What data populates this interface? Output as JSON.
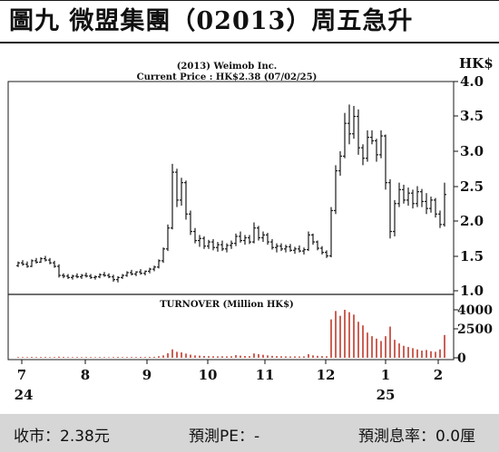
{
  "figure_title": "圖九 微盟集團（02013）周五急升",
  "chart_data": {
    "type": "candlestick",
    "company": "(2013) Weimob Inc.",
    "current_price_label": "Current Price : HK$2.38 (07/02/25)",
    "price_unit": "HK$",
    "ylim": [
      1.0,
      4.0
    ],
    "yticks": [
      "1.0",
      "1.5",
      "2.0",
      "2.5",
      "3.0",
      "3.5",
      "4.0"
    ],
    "xticks": [
      {
        "month": "7",
        "year": "24"
      },
      {
        "month": "8",
        "year": ""
      },
      {
        "month": "9",
        "year": ""
      },
      {
        "month": "10",
        "year": ""
      },
      {
        "month": "11",
        "year": ""
      },
      {
        "month": "12",
        "year": ""
      },
      {
        "month": "1",
        "year": "25"
      },
      {
        "month": "2",
        "year": ""
      }
    ],
    "price_series": [
      [
        1.36,
        1.42,
        1.34,
        1.4
      ],
      [
        1.4,
        1.44,
        1.36,
        1.38
      ],
      [
        1.38,
        1.42,
        1.33,
        1.35
      ],
      [
        1.35,
        1.45,
        1.34,
        1.43
      ],
      [
        1.43,
        1.47,
        1.39,
        1.41
      ],
      [
        1.41,
        1.48,
        1.4,
        1.46
      ],
      [
        1.46,
        1.5,
        1.42,
        1.44
      ],
      [
        1.44,
        1.47,
        1.38,
        1.4
      ],
      [
        1.4,
        1.43,
        1.33,
        1.35
      ],
      [
        1.35,
        1.38,
        1.19,
        1.22
      ],
      [
        1.22,
        1.25,
        1.18,
        1.21
      ],
      [
        1.21,
        1.24,
        1.17,
        1.19
      ],
      [
        1.19,
        1.23,
        1.16,
        1.21
      ],
      [
        1.21,
        1.25,
        1.18,
        1.2
      ],
      [
        1.2,
        1.24,
        1.17,
        1.22
      ],
      [
        1.22,
        1.26,
        1.19,
        1.21
      ],
      [
        1.21,
        1.24,
        1.17,
        1.19
      ],
      [
        1.19,
        1.22,
        1.16,
        1.2
      ],
      [
        1.2,
        1.25,
        1.18,
        1.23
      ],
      [
        1.23,
        1.27,
        1.2,
        1.22
      ],
      [
        1.22,
        1.25,
        1.18,
        1.2
      ],
      [
        1.2,
        1.23,
        1.13,
        1.16
      ],
      [
        1.16,
        1.21,
        1.12,
        1.19
      ],
      [
        1.19,
        1.24,
        1.17,
        1.22
      ],
      [
        1.22,
        1.28,
        1.2,
        1.26
      ],
      [
        1.26,
        1.3,
        1.22,
        1.24
      ],
      [
        1.24,
        1.28,
        1.21,
        1.27
      ],
      [
        1.27,
        1.31,
        1.23,
        1.25
      ],
      [
        1.25,
        1.29,
        1.22,
        1.28
      ],
      [
        1.28,
        1.33,
        1.25,
        1.31
      ],
      [
        1.31,
        1.36,
        1.28,
        1.34
      ],
      [
        1.34,
        1.45,
        1.32,
        1.43
      ],
      [
        1.43,
        1.62,
        1.4,
        1.6
      ],
      [
        1.6,
        1.95,
        1.57,
        1.9
      ],
      [
        1.9,
        2.82,
        1.88,
        2.7
      ],
      [
        2.7,
        2.75,
        2.2,
        2.3
      ],
      [
        2.3,
        2.62,
        2.22,
        2.55
      ],
      [
        2.55,
        2.58,
        2.02,
        2.1
      ],
      [
        2.1,
        2.15,
        1.8,
        1.85
      ],
      [
        1.85,
        1.9,
        1.68,
        1.72
      ],
      [
        1.72,
        1.8,
        1.63,
        1.75
      ],
      [
        1.75,
        1.78,
        1.6,
        1.64
      ],
      [
        1.64,
        1.73,
        1.6,
        1.7
      ],
      [
        1.7,
        1.74,
        1.58,
        1.62
      ],
      [
        1.62,
        1.7,
        1.56,
        1.66
      ],
      [
        1.66,
        1.72,
        1.57,
        1.6
      ],
      [
        1.6,
        1.68,
        1.55,
        1.65
      ],
      [
        1.65,
        1.72,
        1.6,
        1.68
      ],
      [
        1.68,
        1.82,
        1.64,
        1.78
      ],
      [
        1.78,
        1.85,
        1.69,
        1.72
      ],
      [
        1.72,
        1.8,
        1.66,
        1.76
      ],
      [
        1.76,
        1.8,
        1.67,
        1.7
      ],
      [
        1.7,
        1.98,
        1.68,
        1.9
      ],
      [
        1.9,
        1.93,
        1.72,
        1.76
      ],
      [
        1.76,
        1.85,
        1.7,
        1.8
      ],
      [
        1.8,
        1.83,
        1.66,
        1.7
      ],
      [
        1.7,
        1.74,
        1.59,
        1.62
      ],
      [
        1.62,
        1.68,
        1.55,
        1.64
      ],
      [
        1.64,
        1.68,
        1.57,
        1.6
      ],
      [
        1.6,
        1.66,
        1.55,
        1.63
      ],
      [
        1.63,
        1.67,
        1.56,
        1.58
      ],
      [
        1.58,
        1.63,
        1.53,
        1.6
      ],
      [
        1.6,
        1.65,
        1.55,
        1.57
      ],
      [
        1.57,
        1.62,
        1.52,
        1.59
      ],
      [
        1.59,
        1.85,
        1.57,
        1.8
      ],
      [
        1.8,
        1.82,
        1.66,
        1.7
      ],
      [
        1.7,
        1.72,
        1.58,
        1.61
      ],
      [
        1.61,
        1.64,
        1.52,
        1.55
      ],
      [
        1.55,
        1.58,
        1.47,
        1.5
      ],
      [
        1.5,
        2.2,
        1.48,
        2.15
      ],
      [
        2.15,
        2.8,
        2.1,
        2.72
      ],
      [
        2.72,
        3.0,
        2.65,
        2.93
      ],
      [
        2.93,
        3.55,
        2.9,
        3.4
      ],
      [
        3.4,
        3.67,
        3.1,
        3.25
      ],
      [
        3.25,
        3.65,
        3.18,
        3.5
      ],
      [
        3.5,
        3.6,
        2.95,
        3.05
      ],
      [
        3.05,
        3.1,
        2.8,
        2.9
      ],
      [
        2.9,
        3.3,
        2.85,
        3.2
      ],
      [
        3.2,
        3.3,
        3.1,
        3.15
      ],
      [
        3.15,
        3.18,
        2.85,
        2.95
      ],
      [
        2.95,
        3.3,
        2.9,
        3.22
      ],
      [
        3.22,
        3.24,
        2.45,
        2.55
      ],
      [
        2.55,
        2.6,
        1.75,
        1.85
      ],
      [
        1.85,
        2.3,
        1.78,
        2.25
      ],
      [
        2.25,
        2.55,
        2.2,
        2.45
      ],
      [
        2.45,
        2.52,
        2.25,
        2.3
      ],
      [
        2.3,
        2.48,
        2.22,
        2.4
      ],
      [
        2.4,
        2.45,
        2.18,
        2.25
      ],
      [
        2.25,
        2.5,
        2.2,
        2.42
      ],
      [
        2.42,
        2.46,
        2.2,
        2.28
      ],
      [
        2.28,
        2.4,
        2.1,
        2.18
      ],
      [
        2.18,
        2.35,
        2.12,
        2.3
      ],
      [
        2.3,
        2.33,
        2.05,
        2.1
      ],
      [
        2.1,
        2.15,
        1.9,
        1.95
      ],
      [
        1.95,
        2.55,
        1.92,
        2.38
      ]
    ],
    "turnover_title": "TURNOVER (Million HK$)",
    "turnover_ylim": [
      0,
      4000
    ],
    "turnover_yticks": [
      "0",
      "2500",
      "4000"
    ],
    "turnover_values": [
      60,
      60,
      55,
      70,
      60,
      65,
      70,
      55,
      60,
      90,
      70,
      60,
      55,
      60,
      55,
      60,
      55,
      50,
      60,
      55,
      50,
      60,
      70,
      55,
      60,
      65,
      60,
      70,
      65,
      75,
      80,
      130,
      200,
      380,
      700,
      500,
      450,
      350,
      260,
      200,
      180,
      150,
      140,
      130,
      120,
      130,
      120,
      130,
      220,
      180,
      150,
      140,
      360,
      300,
      250,
      200,
      160,
      140,
      130,
      120,
      110,
      120,
      110,
      120,
      300,
      200,
      160,
      140,
      130,
      3200,
      3900,
      3500,
      4000,
      3800,
      3600,
      3000,
      2700,
      2100,
      1800,
      1600,
      1400,
      1800,
      2600,
      1500,
      1200,
      1000,
      900,
      800,
      700,
      600,
      650,
      550,
      500,
      700,
      1900
    ],
    "price_color": "#1a1a1a",
    "turnover_color": "#c0392b"
  },
  "footer": {
    "close": "收市：2.38元",
    "pe": "預測PE：-",
    "yield": "預測息率：0.0厘"
  }
}
